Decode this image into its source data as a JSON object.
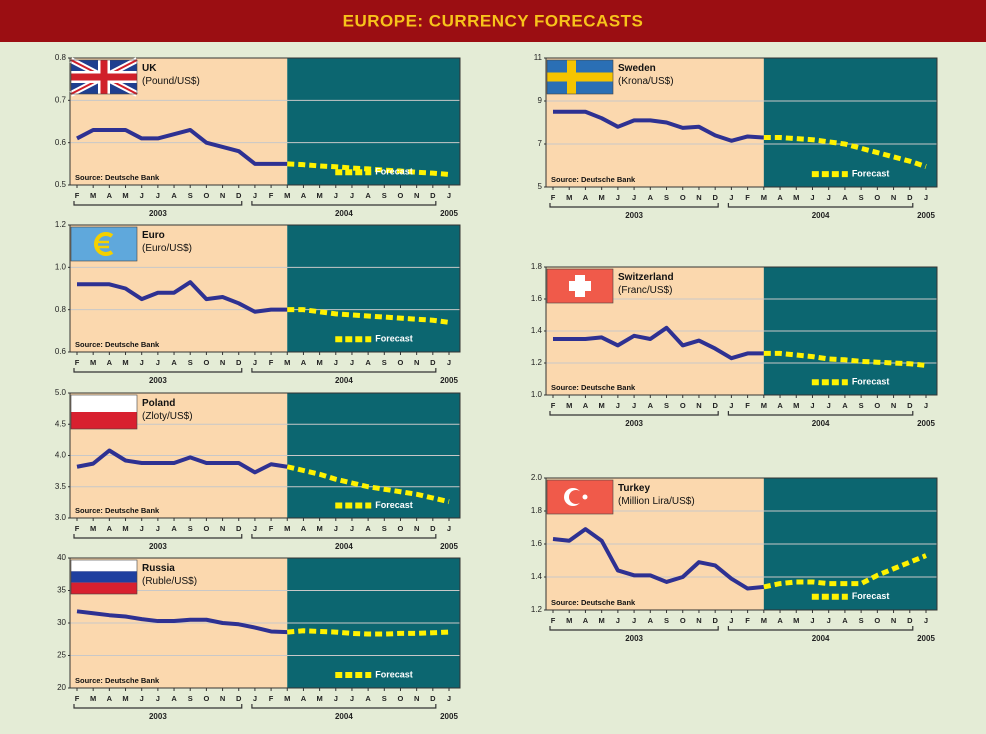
{
  "title": "EUROPE: CURRENCY FORECASTS",
  "chart_data": [
    {
      "type": "line",
      "title": "UK",
      "subtitle": "(Pound/US$)",
      "source": "Source: Deutsche Bank",
      "categories": [
        "F",
        "M",
        "A",
        "M",
        "J",
        "J",
        "A",
        "S",
        "O",
        "N",
        "D",
        "J",
        "F",
        "M",
        "A",
        "M",
        "J",
        "J",
        "A",
        "S",
        "O",
        "N",
        "D",
        "J"
      ],
      "years": [
        "2003",
        "2004",
        "2005"
      ],
      "ylim": [
        0.5,
        0.8
      ],
      "yticks": [
        0.5,
        0.6,
        0.7,
        0.8
      ],
      "grid": true,
      "series": [
        {
          "color": "#2e3192",
          "values": [
            0.61,
            0.63,
            0.63,
            0.63,
            0.61,
            0.61,
            0.62,
            0.63,
            0.6,
            0.59,
            0.58,
            0.55,
            0.55,
            0.55,
            null,
            null,
            null,
            null,
            null,
            null,
            null,
            null,
            null,
            null
          ]
        },
        {
          "name": "Forecast",
          "color": "#fff200",
          "dashed": true,
          "values": [
            null,
            null,
            null,
            null,
            null,
            null,
            null,
            null,
            null,
            null,
            null,
            null,
            null,
            0.55,
            0.548,
            0.545,
            0.543,
            0.54,
            0.538,
            0.535,
            0.533,
            0.53,
            0.528,
            0.525
          ]
        }
      ]
    },
    {
      "type": "line",
      "title": "Euro",
      "subtitle": "(Euro/US$)",
      "source": "Source: Deutsche Bank",
      "categories": [
        "F",
        "M",
        "A",
        "M",
        "J",
        "J",
        "A",
        "S",
        "O",
        "N",
        "D",
        "J",
        "F",
        "M",
        "A",
        "M",
        "J",
        "J",
        "A",
        "S",
        "O",
        "N",
        "D",
        "J"
      ],
      "years": [
        "2003",
        "2004",
        "2005"
      ],
      "ylim": [
        0.6,
        1.2
      ],
      "yticks": [
        0.6,
        0.8,
        {
          "value": 1.0,
          "label": "1.0"
        },
        1.2
      ],
      "grid": true,
      "series": [
        {
          "color": "#2e3192",
          "values": [
            0.92,
            0.92,
            0.92,
            0.9,
            0.85,
            0.88,
            0.88,
            0.93,
            0.85,
            0.86,
            0.83,
            0.79,
            0.8,
            0.8,
            null,
            null,
            null,
            null,
            null,
            null,
            null,
            null,
            null,
            null
          ]
        },
        {
          "name": "Forecast",
          "color": "#fff200",
          "dashed": true,
          "values": [
            null,
            null,
            null,
            null,
            null,
            null,
            null,
            null,
            null,
            null,
            null,
            null,
            null,
            0.8,
            0.8,
            0.79,
            0.78,
            0.775,
            0.77,
            0.765,
            0.76,
            0.755,
            0.75,
            0.74
          ]
        }
      ]
    },
    {
      "type": "line",
      "title": "Poland",
      "subtitle": "(Zloty/US$)",
      "source": "Source: Deutsche Bank",
      "categories": [
        "F",
        "M",
        "A",
        "M",
        "J",
        "J",
        "A",
        "S",
        "O",
        "N",
        "D",
        "J",
        "F",
        "M",
        "A",
        "M",
        "J",
        "J",
        "A",
        "S",
        "O",
        "N",
        "D",
        "J"
      ],
      "years": [
        "2003",
        "2004",
        "2005"
      ],
      "ylim": [
        3.0,
        5.0
      ],
      "yticks": [
        {
          "value": 3.0,
          "label": "3.0"
        },
        3.5,
        {
          "value": 4.0,
          "label": "4.0"
        },
        4.5,
        {
          "value": 5.0,
          "label": "5.0"
        }
      ],
      "grid": true,
      "series": [
        {
          "color": "#2e3192",
          "values": [
            3.82,
            3.87,
            4.08,
            3.92,
            3.88,
            3.88,
            3.88,
            3.97,
            3.88,
            3.88,
            3.88,
            3.73,
            3.86,
            3.82,
            null,
            null,
            null,
            null,
            null,
            null,
            null,
            null,
            null,
            null
          ]
        },
        {
          "name": "Forecast",
          "color": "#fff200",
          "dashed": true,
          "values": [
            null,
            null,
            null,
            null,
            null,
            null,
            null,
            null,
            null,
            null,
            null,
            null,
            null,
            3.82,
            3.76,
            3.7,
            3.62,
            3.56,
            3.5,
            3.46,
            3.42,
            3.38,
            3.32,
            3.26
          ]
        }
      ]
    },
    {
      "type": "line",
      "title": "Russia",
      "subtitle": "(Ruble/US$)",
      "source": "Source: Deutsche Bank",
      "categories": [
        "F",
        "M",
        "A",
        "M",
        "J",
        "J",
        "A",
        "S",
        "O",
        "N",
        "D",
        "J",
        "F",
        "M",
        "A",
        "M",
        "J",
        "J",
        "A",
        "S",
        "O",
        "N",
        "D",
        "J"
      ],
      "years": [
        "2003",
        "2004",
        "2005"
      ],
      "ylim": [
        20,
        40
      ],
      "yticks": [
        20,
        25,
        30,
        35,
        40
      ],
      "grid": true,
      "series": [
        {
          "color": "#2e3192",
          "values": [
            31.8,
            31.5,
            31.2,
            31.0,
            30.6,
            30.3,
            30.3,
            30.5,
            30.5,
            30.0,
            29.8,
            29.3,
            28.7,
            28.6,
            null,
            null,
            null,
            null,
            null,
            null,
            null,
            null,
            null,
            null
          ]
        },
        {
          "name": "Forecast",
          "color": "#fff200",
          "dashed": true,
          "values": [
            null,
            null,
            null,
            null,
            null,
            null,
            null,
            null,
            null,
            null,
            null,
            null,
            null,
            28.6,
            28.8,
            28.7,
            28.6,
            28.4,
            28.3,
            28.3,
            28.4,
            28.4,
            28.5,
            28.6
          ]
        }
      ]
    },
    {
      "type": "line",
      "title": "Sweden",
      "subtitle": "(Krona/US$)",
      "source": "Source: Deutsche Bank",
      "categories": [
        "F",
        "M",
        "A",
        "M",
        "J",
        "J",
        "A",
        "S",
        "O",
        "N",
        "D",
        "J",
        "F",
        "M",
        "A",
        "M",
        "J",
        "J",
        "A",
        "S",
        "O",
        "N",
        "D",
        "J"
      ],
      "years": [
        "2003",
        "2004",
        "2005"
      ],
      "ylim": [
        5,
        11
      ],
      "yticks": [
        5,
        7,
        9,
        11
      ],
      "grid": true,
      "series": [
        {
          "color": "#2e3192",
          "values": [
            8.5,
            8.5,
            8.5,
            8.2,
            7.8,
            8.1,
            8.1,
            8.0,
            7.75,
            7.8,
            7.4,
            7.15,
            7.35,
            7.3,
            null,
            null,
            null,
            null,
            null,
            null,
            null,
            null,
            null,
            null
          ]
        },
        {
          "name": "Forecast",
          "color": "#fff200",
          "dashed": true,
          "values": [
            null,
            null,
            null,
            null,
            null,
            null,
            null,
            null,
            null,
            null,
            null,
            null,
            null,
            7.3,
            7.3,
            7.25,
            7.2,
            7.1,
            7.0,
            6.8,
            6.6,
            6.4,
            6.2,
            5.95
          ]
        }
      ]
    },
    {
      "type": "line",
      "title": "Switzerland",
      "subtitle": "(Franc/US$)",
      "source": "Source: Deutsche Bank",
      "categories": [
        "F",
        "M",
        "A",
        "M",
        "J",
        "J",
        "A",
        "S",
        "O",
        "N",
        "D",
        "J",
        "F",
        "M",
        "A",
        "M",
        "J",
        "J",
        "A",
        "S",
        "O",
        "N",
        "D",
        "J"
      ],
      "years": [
        "2003",
        "2004",
        "2005"
      ],
      "ylim": [
        1.0,
        1.8
      ],
      "yticks": [
        {
          "value": 1.0,
          "label": "1.0"
        },
        1.2,
        1.4,
        1.6,
        1.8
      ],
      "grid": true,
      "series": [
        {
          "color": "#2e3192",
          "values": [
            1.35,
            1.35,
            1.35,
            1.36,
            1.31,
            1.37,
            1.35,
            1.42,
            1.31,
            1.34,
            1.29,
            1.23,
            1.26,
            1.26,
            null,
            null,
            null,
            null,
            null,
            null,
            null,
            null,
            null,
            null
          ]
        },
        {
          "name": "Forecast",
          "color": "#fff200",
          "dashed": true,
          "values": [
            null,
            null,
            null,
            null,
            null,
            null,
            null,
            null,
            null,
            null,
            null,
            null,
            null,
            1.26,
            1.26,
            1.25,
            1.24,
            1.225,
            1.22,
            1.21,
            1.205,
            1.2,
            1.195,
            1.185
          ]
        }
      ]
    },
    {
      "type": "line",
      "title": "Turkey",
      "subtitle": "(Million Lira/US$)",
      "source": "Source: Deutsche Bank",
      "categories": [
        "F",
        "M",
        "A",
        "M",
        "J",
        "J",
        "A",
        "S",
        "O",
        "N",
        "D",
        "J",
        "F",
        "M",
        "A",
        "M",
        "J",
        "J",
        "A",
        "S",
        "O",
        "N",
        "D",
        "J"
      ],
      "years": [
        "2003",
        "2004",
        "2005"
      ],
      "ylim": [
        1.2,
        2.0
      ],
      "yticks": [
        1.2,
        1.4,
        1.6,
        1.8,
        {
          "value": 2.0,
          "label": "2.0"
        }
      ],
      "grid": true,
      "series": [
        {
          "color": "#2e3192",
          "values": [
            1.63,
            1.62,
            1.69,
            1.62,
            1.44,
            1.41,
            1.41,
            1.37,
            1.4,
            1.49,
            1.47,
            1.39,
            1.33,
            1.34,
            null,
            null,
            null,
            null,
            null,
            null,
            null,
            null,
            null,
            null
          ]
        },
        {
          "name": "Forecast",
          "color": "#fff200",
          "dashed": true,
          "values": [
            null,
            null,
            null,
            null,
            null,
            null,
            null,
            null,
            null,
            null,
            null,
            null,
            null,
            1.34,
            1.36,
            1.37,
            1.37,
            1.36,
            1.36,
            1.36,
            1.41,
            1.45,
            1.49,
            1.53
          ]
        }
      ]
    }
  ]
}
